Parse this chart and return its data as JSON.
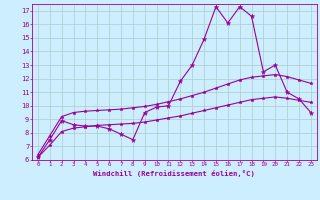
{
  "title": "",
  "xlabel": "Windchill (Refroidissement éolien,°C)",
  "background_color": "#cceeff",
  "line_color": "#990099",
  "grid_color": "#aacccc",
  "xlim": [
    -0.5,
    23.5
  ],
  "ylim": [
    6,
    17.5
  ],
  "xticks": [
    0,
    1,
    2,
    3,
    4,
    5,
    6,
    7,
    8,
    9,
    10,
    11,
    12,
    13,
    14,
    15,
    16,
    17,
    18,
    19,
    20,
    21,
    22,
    23
  ],
  "yticks": [
    6,
    7,
    8,
    9,
    10,
    11,
    12,
    13,
    14,
    15,
    16,
    17
  ],
  "line1_x": [
    0,
    1,
    2,
    3,
    4,
    5,
    6,
    7,
    8,
    9,
    10,
    11,
    12,
    13,
    14,
    15,
    16,
    17,
    18,
    19,
    20,
    21,
    22,
    23
  ],
  "line1_y": [
    6.2,
    7.5,
    8.9,
    8.6,
    8.5,
    8.5,
    8.3,
    7.9,
    7.5,
    9.5,
    9.9,
    10.0,
    11.8,
    13.0,
    14.9,
    17.3,
    16.1,
    17.3,
    16.6,
    12.5,
    13.0,
    11.0,
    10.5,
    9.5
  ],
  "line2_x": [
    0,
    1,
    2,
    3,
    4,
    5,
    6,
    7,
    8,
    9,
    10,
    11,
    12,
    13,
    14,
    15,
    16,
    17,
    18,
    19,
    20,
    21,
    22,
    23
  ],
  "line2_y": [
    6.4,
    7.8,
    9.2,
    9.5,
    9.6,
    9.65,
    9.7,
    9.75,
    9.85,
    9.95,
    10.1,
    10.3,
    10.5,
    10.75,
    11.0,
    11.3,
    11.6,
    11.9,
    12.1,
    12.2,
    12.3,
    12.15,
    11.9,
    11.65
  ],
  "line3_x": [
    0,
    1,
    2,
    3,
    4,
    5,
    6,
    7,
    8,
    9,
    10,
    11,
    12,
    13,
    14,
    15,
    16,
    17,
    18,
    19,
    20,
    21,
    22,
    23
  ],
  "line3_y": [
    6.2,
    7.1,
    8.1,
    8.35,
    8.45,
    8.55,
    8.6,
    8.65,
    8.7,
    8.8,
    8.95,
    9.1,
    9.25,
    9.45,
    9.65,
    9.85,
    10.05,
    10.25,
    10.45,
    10.55,
    10.65,
    10.55,
    10.4,
    10.25
  ]
}
